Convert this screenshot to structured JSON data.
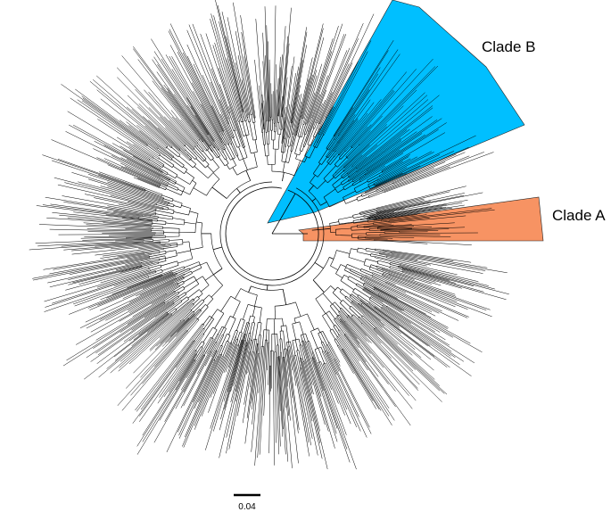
{
  "figure": {
    "type": "circular-phylogenetic-tree",
    "line_color": "#000000",
    "background": "#ffffff"
  },
  "clades": [
    {
      "label": "Clade B",
      "color": "#00bfff"
    },
    {
      "label": "Clade A",
      "color": "#f79363"
    }
  ],
  "scale_bar": {
    "label": "0.04",
    "value": 0.04
  }
}
